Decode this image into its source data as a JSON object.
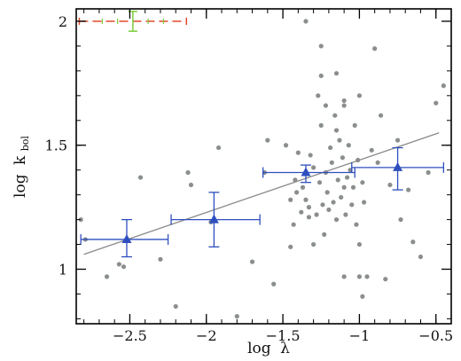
{
  "chart_data": {
    "type": "scatter",
    "xlabel": {
      "main": "log",
      "symbol": "λ"
    },
    "ylabel": {
      "main": "log",
      "symbol": "k",
      "subscript": "bol"
    },
    "xlim": [
      -2.85,
      -0.4
    ],
    "ylim": [
      0.78,
      2.05
    ],
    "xticks": [
      -2.5,
      -2,
      -1.5,
      -1,
      -0.5
    ],
    "xtick_labels": [
      "−2.5",
      "−2",
      "−1.5",
      "−1",
      "−0.5"
    ],
    "yticks": [
      1,
      1.5,
      2
    ],
    "ytick_labels": [
      "1",
      "1.5",
      "2"
    ],
    "grid": false,
    "colors": {
      "points": "#8a8f8c",
      "fit_line": "#888a88",
      "binned": "#2f4fbf",
      "ref_h": "#e04a2a",
      "ref_v": "#7ccc3a",
      "frame": "#000000"
    },
    "points": [
      [
        -2.82,
        1.2
      ],
      [
        -2.79,
        1.12
      ],
      [
        -2.65,
        0.97
      ],
      [
        -2.57,
        1.02
      ],
      [
        -2.54,
        1.01
      ],
      [
        -2.43,
        1.37
      ],
      [
        -2.3,
        1.04
      ],
      [
        -2.2,
        0.85
      ],
      [
        -2.12,
        1.39
      ],
      [
        -2.1,
        1.34
      ],
      [
        -1.97,
        1.19
      ],
      [
        -1.92,
        1.49
      ],
      [
        -1.7,
        1.03
      ],
      [
        -1.62,
        1.39
      ],
      [
        -1.56,
        0.94
      ],
      [
        -1.48,
        1.5
      ],
      [
        -1.45,
        1.28
      ],
      [
        -1.43,
        1.18
      ],
      [
        -1.42,
        1.36
      ],
      [
        -1.4,
        1.47
      ],
      [
        -1.38,
        1.23
      ],
      [
        -1.37,
        1.33
      ],
      [
        -1.35,
        1.28
      ],
      [
        -1.33,
        1.25
      ],
      [
        -1.32,
        1.46
      ],
      [
        -1.3,
        1.41
      ],
      [
        -1.28,
        1.22
      ],
      [
        -1.27,
        1.7
      ],
      [
        -1.26,
        1.35
      ],
      [
        -1.25,
        1.58
      ],
      [
        -1.24,
        1.26
      ],
      [
        -1.23,
        1.14
      ],
      [
        -1.22,
        1.39
      ],
      [
        -1.21,
        1.31
      ],
      [
        -1.2,
        1.24
      ],
      [
        -1.19,
        1.49
      ],
      [
        -1.18,
        1.43
      ],
      [
        -1.17,
        1.27
      ],
      [
        -1.16,
        1.62
      ],
      [
        -1.15,
        1.2
      ],
      [
        -1.14,
        1.36
      ],
      [
        -1.13,
        1.52
      ],
      [
        -1.12,
        1.29
      ],
      [
        -1.11,
        1.45
      ],
      [
        -1.1,
        1.33
      ],
      [
        -1.1,
        1.68
      ],
      [
        -1.09,
        1.22
      ],
      [
        -1.08,
        1.37
      ],
      [
        -1.07,
        1.5
      ],
      [
        -1.06,
        1.4
      ],
      [
        -1.05,
        1.26
      ],
      [
        -1.04,
        1.33
      ],
      [
        -1.03,
        1.58
      ],
      [
        -1.02,
        1.18
      ],
      [
        -1.01,
        1.44
      ],
      [
        -1.0,
        1.1
      ],
      [
        -0.98,
        1.35
      ],
      [
        -0.97,
        1.27
      ],
      [
        -0.95,
        0.97
      ],
      [
        -0.92,
        1.48
      ],
      [
        -0.88,
        1.43
      ],
      [
        -0.86,
        1.62
      ],
      [
        -0.83,
        0.96
      ],
      [
        -0.8,
        1.34
      ],
      [
        -0.75,
        1.52
      ],
      [
        -0.73,
        1.2
      ],
      [
        -0.68,
        1.32
      ],
      [
        -0.65,
        1.11
      ],
      [
        -0.6,
        1.05
      ],
      [
        -0.55,
        1.39
      ],
      [
        -0.5,
        1.67
      ],
      [
        -0.45,
        1.74
      ],
      [
        -1.35,
        2.0
      ],
      [
        -1.25,
        1.9
      ],
      [
        -1.15,
        1.79
      ],
      [
        -1.25,
        1.78
      ],
      [
        -0.9,
        1.89
      ],
      [
        -1.0,
        1.7
      ],
      [
        -1.1,
        1.66
      ],
      [
        -1.6,
        1.52
      ],
      [
        -1.8,
        0.81
      ],
      [
        -1.45,
        1.09
      ],
      [
        -1.0,
        0.97
      ],
      [
        -1.1,
        0.97
      ],
      [
        -0.98,
        0.89
      ],
      [
        -1.22,
        1.66
      ],
      [
        -1.3,
        1.1
      ],
      [
        -1.33,
        1.21
      ],
      [
        -1.41,
        1.31
      ],
      [
        -1.15,
        1.56
      ]
    ],
    "fit_line": [
      [
        -2.8,
        1.06
      ],
      [
        -0.48,
        1.55
      ]
    ],
    "binned": [
      {
        "x": -2.52,
        "y": 1.12,
        "xerr": [
          0.3,
          0.27
        ],
        "yerr": [
          0.07,
          0.08
        ]
      },
      {
        "x": -1.95,
        "y": 1.2,
        "xerr": [
          0.28,
          0.3
        ],
        "yerr": [
          0.11,
          0.11
        ]
      },
      {
        "x": -1.35,
        "y": 1.39,
        "xerr": [
          0.28,
          0.32
        ],
        "yerr": [
          0.04,
          0.03
        ]
      },
      {
        "x": -0.75,
        "y": 1.41,
        "xerr": [
          0.3,
          0.3
        ],
        "yerr": [
          0.09,
          0.08
        ]
      }
    ],
    "reference_errorbar": {
      "x": -2.48,
      "y": 2.0,
      "xerr": [
        0.35,
        0.35
      ],
      "xticks": [
        -2.68,
        -2.58,
        -2.38,
        -2.28
      ],
      "yerr": [
        0.04,
        0.04
      ]
    }
  }
}
